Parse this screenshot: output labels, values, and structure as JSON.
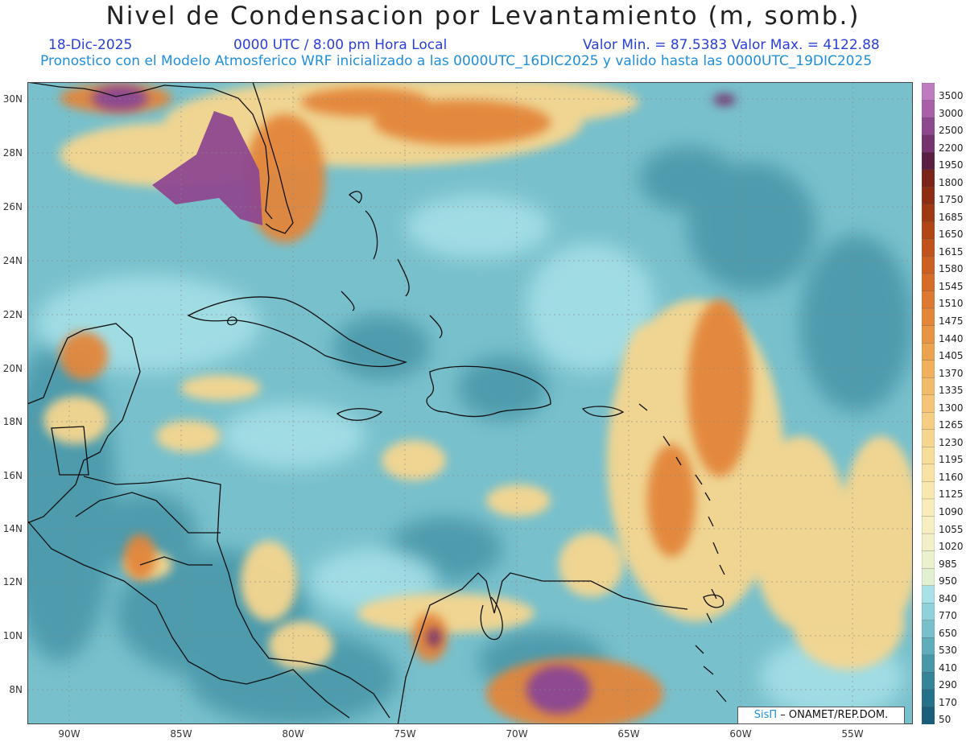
{
  "title": "Nivel de Condensacion por Levantamiento (m, somb.)",
  "date": "18-Dic-2025",
  "time": "0000 UTC / 8:00 pm Hora Local",
  "minmax": "Valor Min. = 87.5383  Valor Max. = 4122.88",
  "forecast_note": "Pronostico con el Modelo Atmosferico WRF inicializado a las 0000UTC_16DIC2025 y valido hasta las  0000UTC_19DIC2025",
  "credit": {
    "brand": "SisΠ",
    "text": " – ONAMET/REP.DOM."
  },
  "lat_labels": [
    "30N",
    "28N",
    "26N",
    "24N",
    "22N",
    "20N",
    "18N",
    "16N",
    "14N",
    "12N",
    "10N",
    "8N"
  ],
  "lon_labels": [
    "90W",
    "85W",
    "80W",
    "75W",
    "70W",
    "65W",
    "60W",
    "55W"
  ],
  "legend": {
    "labels": [
      "3500",
      "3000",
      "2500",
      "2200",
      "1950",
      "1800",
      "1750",
      "1685",
      "1650",
      "1615",
      "1580",
      "1545",
      "1510",
      "1475",
      "1440",
      "1405",
      "1370",
      "1335",
      "1300",
      "1265",
      "1230",
      "1195",
      "1160",
      "1125",
      "1090",
      "1055",
      "1020",
      "985",
      "950",
      "840",
      "770",
      "650",
      "530",
      "410",
      "290",
      "170",
      "50"
    ],
    "colors": [
      "#c07ac0",
      "#a860a8",
      "#8e4890",
      "#76336f",
      "#5c1f44",
      "#7a2518",
      "#8d2e14",
      "#a03813",
      "#b24516",
      "#c2521b",
      "#cc5f21",
      "#d66c28",
      "#dd7930",
      "#e3863a",
      "#e89445",
      "#eca350",
      "#f0b05c",
      "#f2bb69",
      "#f4c576",
      "#f5ce83",
      "#f6d68f",
      "#f7dd9a",
      "#f8e3a5",
      "#f8e8b0",
      "#f8ecba",
      "#f7efc2",
      "#f3f0c8",
      "#ebf1cc",
      "#e0f0d0",
      "#a8e1e8",
      "#90d2dc",
      "#78c0cc",
      "#5fadbb",
      "#4898aa",
      "#35849a",
      "#25718a",
      "#1a5f79"
    ]
  },
  "map_colors": {
    "ocean_base": "#78c0cc",
    "deep_teal": "#4898aa",
    "pale_cyan": "#a8e1e8",
    "pale_yellow": "#f6d68f",
    "orange": "#e3863a",
    "dark_orange": "#b24516",
    "purple": "#8e4890",
    "dark_purple": "#5c1f44",
    "coast": "#111111"
  }
}
